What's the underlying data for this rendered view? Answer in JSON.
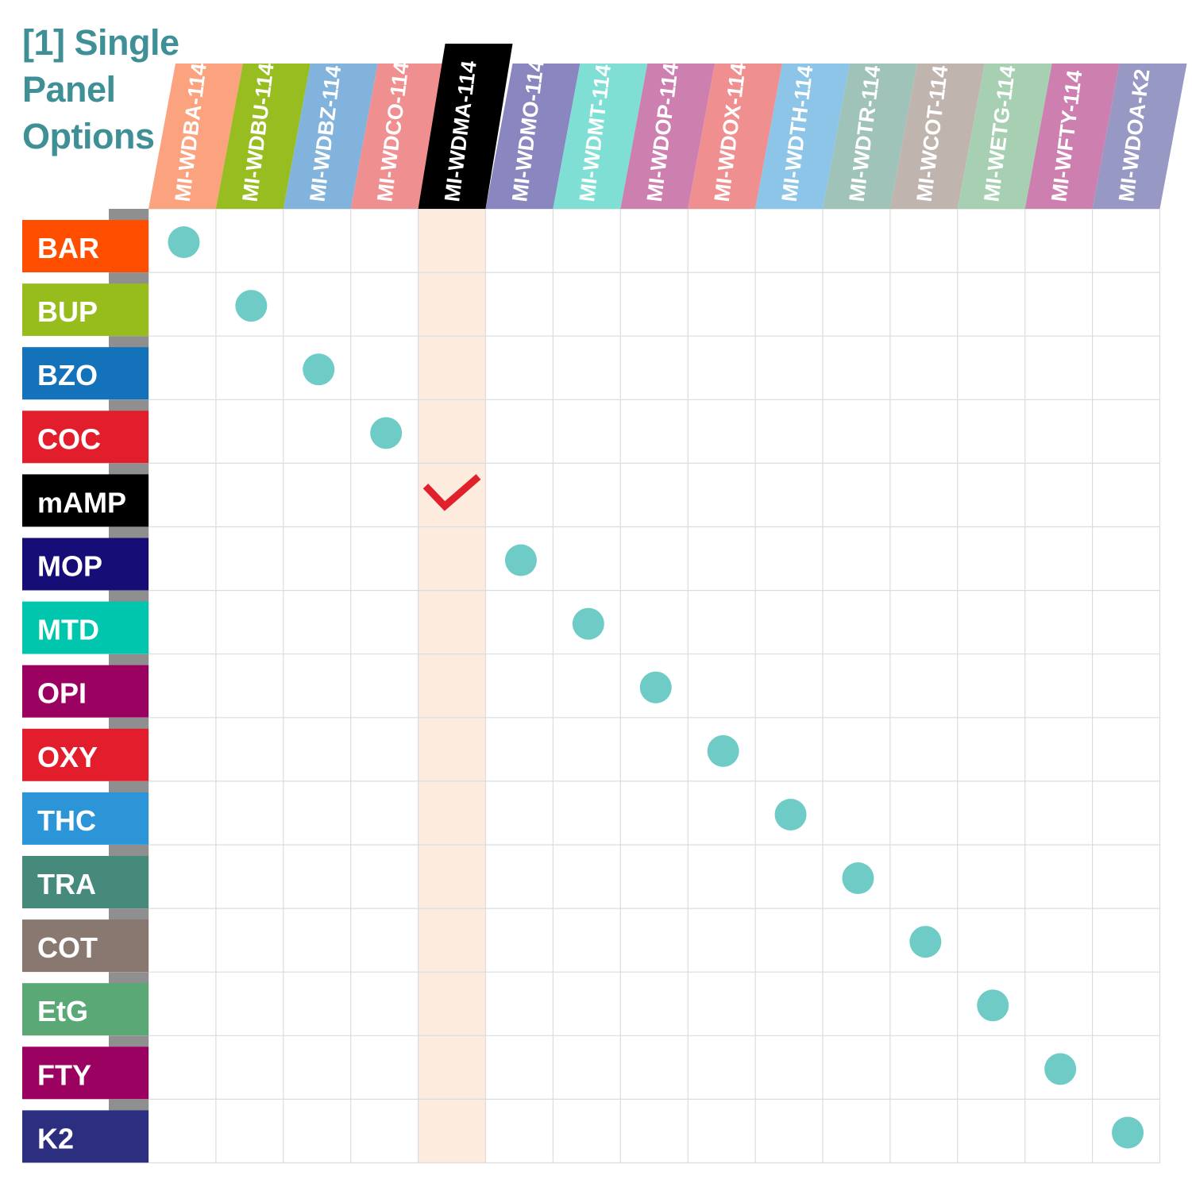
{
  "title": {
    "lines": [
      "[1] Single",
      "Panel",
      "Options"
    ],
    "color": "#3f8f97"
  },
  "columns": [
    {
      "label": "MI-WDBA-114",
      "color": "#fba27f"
    },
    {
      "label": "MI-WDBU-114",
      "color": "#97bd21"
    },
    {
      "label": "MI-WDBZ-114",
      "color": "#81b3dc"
    },
    {
      "label": "MI-WDCO-114",
      "color": "#f08f90"
    },
    {
      "label": "MI-WDMA-114",
      "color": "#000000"
    },
    {
      "label": "MI-WDMO-114",
      "color": "#8a86bf"
    },
    {
      "label": "MI-WDMT-114",
      "color": "#7fdfd4"
    },
    {
      "label": "MI-WDOP-114",
      "color": "#cd7fb0"
    },
    {
      "label": "MI-WDOX-114",
      "color": "#f08f90"
    },
    {
      "label": "MI-WDTH-114",
      "color": "#8cc5e7"
    },
    {
      "label": "MI-WDTR-114",
      "color": "#9fc3b9"
    },
    {
      "label": "MI-WCOT-114",
      "color": "#bfb4ae"
    },
    {
      "label": "MI-WETG-114",
      "color": "#a7d0b3"
    },
    {
      "label": "MI-WFTY-114",
      "color": "#cd7fb0"
    },
    {
      "label": "MI-WDOA-K2",
      "color": "#9798c4"
    }
  ],
  "rows": [
    {
      "label": "BAR",
      "color": "#ff4e00"
    },
    {
      "label": "BUP",
      "color": "#97bd1d"
    },
    {
      "label": "BZO",
      "color": "#1472bb"
    },
    {
      "label": "COC",
      "color": "#e31e2c"
    },
    {
      "label": "mAMP",
      "color": "#000000"
    },
    {
      "label": "MOP",
      "color": "#170d77"
    },
    {
      "label": "MTD",
      "color": "#00c6ae"
    },
    {
      "label": "OPI",
      "color": "#9b0161"
    },
    {
      "label": "OXY",
      "color": "#e31e2c"
    },
    {
      "label": "THC",
      "color": "#2c95d8"
    },
    {
      "label": "TRA",
      "color": "#458a7b"
    },
    {
      "label": "COT",
      "color": "#887870"
    },
    {
      "label": "EtG",
      "color": "#5ba877"
    },
    {
      "label": "FTY",
      "color": "#9b0161"
    },
    {
      "label": "K2",
      "color": "#2c2e80"
    }
  ],
  "highlight_column": 4,
  "marks": [
    {
      "row": 0,
      "col": 0,
      "type": "dot"
    },
    {
      "row": 1,
      "col": 1,
      "type": "dot"
    },
    {
      "row": 2,
      "col": 2,
      "type": "dot"
    },
    {
      "row": 3,
      "col": 3,
      "type": "dot"
    },
    {
      "row": 4,
      "col": 4,
      "type": "check"
    },
    {
      "row": 5,
      "col": 5,
      "type": "dot"
    },
    {
      "row": 6,
      "col": 6,
      "type": "dot"
    },
    {
      "row": 7,
      "col": 7,
      "type": "dot"
    },
    {
      "row": 8,
      "col": 8,
      "type": "dot"
    },
    {
      "row": 9,
      "col": 9,
      "type": "dot"
    },
    {
      "row": 10,
      "col": 10,
      "type": "dot"
    },
    {
      "row": 11,
      "col": 11,
      "type": "dot"
    },
    {
      "row": 12,
      "col": 12,
      "type": "dot"
    },
    {
      "row": 13,
      "col": 13,
      "type": "dot"
    },
    {
      "row": 14,
      "col": 14,
      "type": "dot"
    }
  ],
  "colors": {
    "dot": "#6ecbc6",
    "check": "#e0202a",
    "highlight": "#fdebde",
    "grid": "#dcdcdc",
    "row_tab_shadow": "#8f8f8f"
  }
}
